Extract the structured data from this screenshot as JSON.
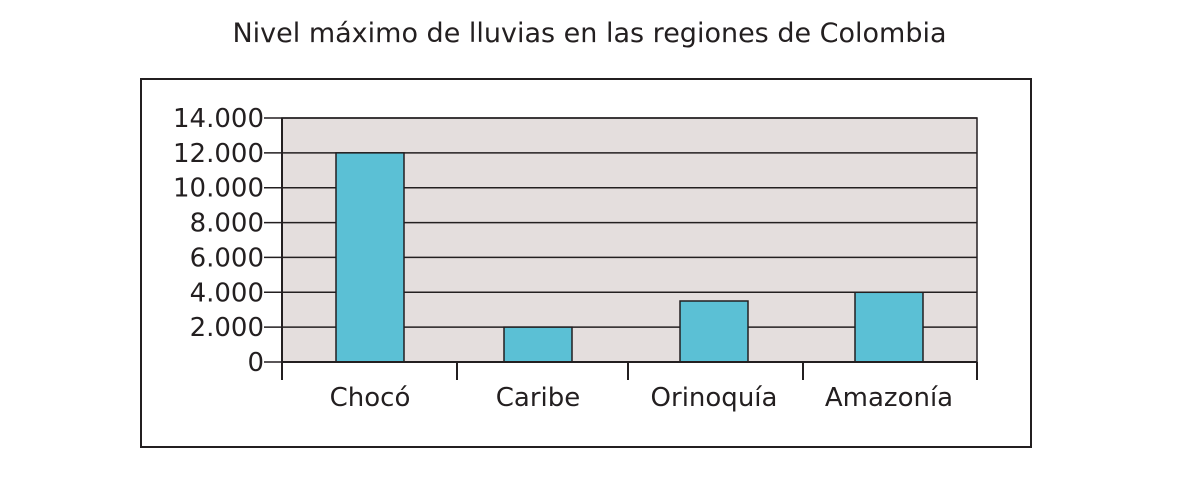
{
  "chart_data": {
    "type": "bar",
    "title": "Nivel máximo de lluvias en las regiones de Colombia",
    "xlabel": "",
    "ylabel": "",
    "categories": [
      "Chocó",
      "Caribe",
      "Orinoquía",
      "Amazonía"
    ],
    "values": [
      12000,
      2000,
      3500,
      4000
    ],
    "ylim": [
      0,
      14000
    ],
    "yticks": [
      0,
      2000,
      4000,
      6000,
      8000,
      10000,
      12000,
      14000
    ],
    "ytick_labels": [
      "0",
      "2.000",
      "4.000",
      "6.000",
      "8.000",
      "10.000",
      "12.000",
      "14.000"
    ],
    "grid": true,
    "legend": "none",
    "colors": {
      "bar": "#5bc0d5",
      "plot_background": "#e4dedd",
      "axis": "#231f20"
    }
  }
}
